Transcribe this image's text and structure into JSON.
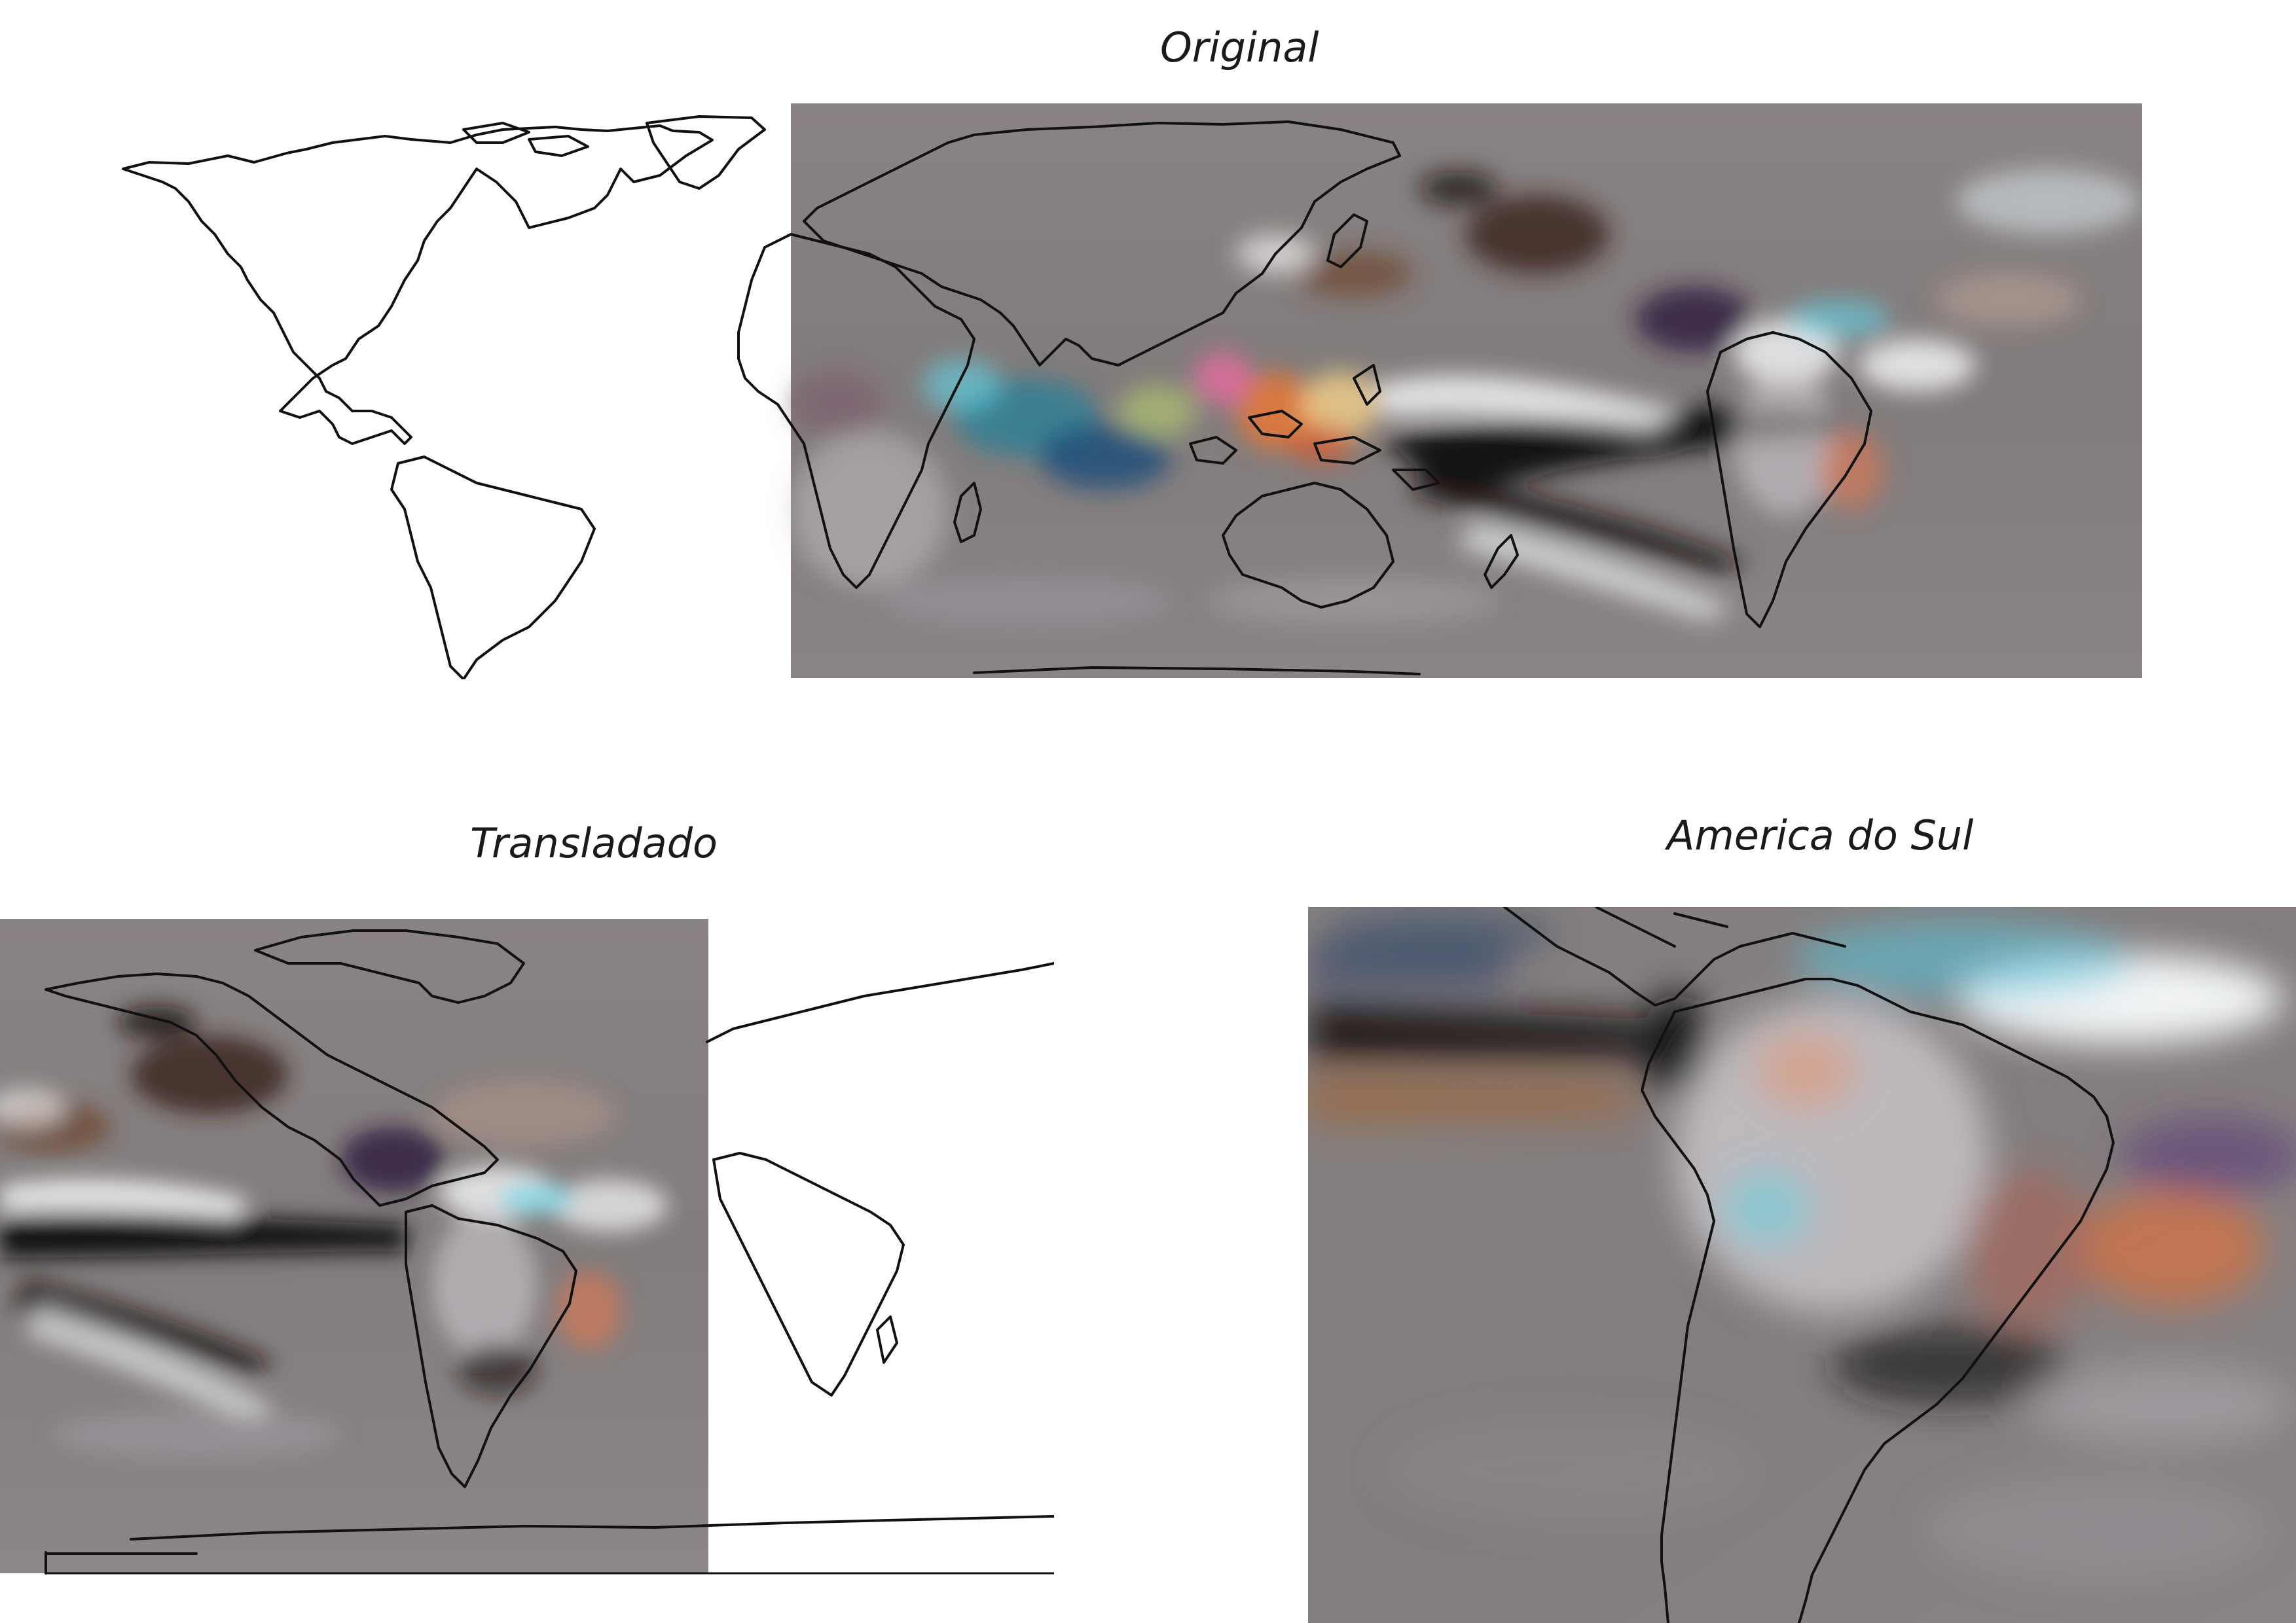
{
  "titles": {
    "original": "Original",
    "translated": "Transladado",
    "south_america": "America do Sul"
  },
  "colors": {
    "background": "#ffffff",
    "field_gray": "#857f7f",
    "coastline": "#111111",
    "dark_band": "#0e0b0b",
    "white_plume": "#f2f4f6",
    "cyan": "#5fd6e8",
    "orange": "#e0783c",
    "magenta": "#e86aa0"
  },
  "icons": [
    "coastline-map"
  ]
}
